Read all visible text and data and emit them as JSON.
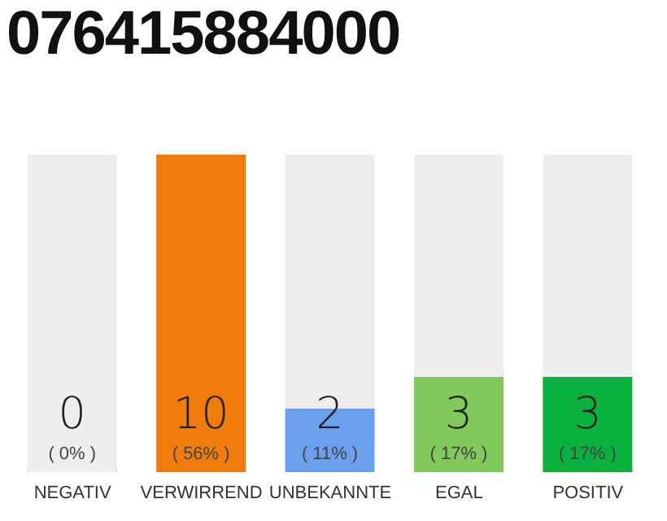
{
  "chart_data": {
    "type": "bar",
    "title": "076415884000",
    "stacked": true,
    "categories": [
      "NEGATIV",
      "VERWIRREND",
      "UNBEKANNTE",
      "EGAL",
      "POSITIV"
    ],
    "series": [
      {
        "colors": [
          "#555555",
          "#f07c0c",
          "#6ba0ec",
          "#80c95a",
          "#0bb13f"
        ],
        "values": [
          0,
          10,
          2,
          3,
          3
        ],
        "value_labels": [
          "0",
          "10",
          "2",
          "3",
          "3"
        ]
      },
      {
        "color": "#eeeeee",
        "values": [
          10,
          0,
          8,
          7,
          7
        ]
      }
    ],
    "annotations": [
      "( 0% )",
      "( 56% )",
      "( 11% )",
      "( 17% )",
      "( 17% )"
    ]
  }
}
